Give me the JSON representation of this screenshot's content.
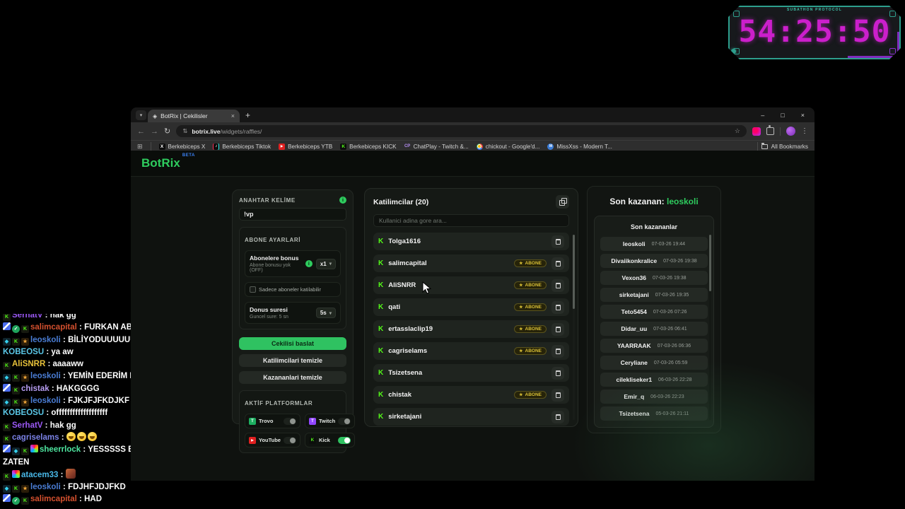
{
  "timer": {
    "label": "SUBATHON PROTOCOL",
    "time": "54:25:50",
    "digit_color": "#cb1fcb",
    "frame_color": "#2d9f8d"
  },
  "browser": {
    "tab_title": "BotRix | Cekilisler",
    "url_host": "botrix.live",
    "url_path": "/widgets/raffles/",
    "bookmarks": [
      {
        "label": "Berkebiceps X",
        "icon": "x-icon",
        "cls": "bm-x"
      },
      {
        "label": "Berkebiceps Tiktok",
        "icon": "tiktok-icon",
        "cls": "bm-tiktok"
      },
      {
        "label": "Berkebiceps YTB",
        "icon": "youtube-icon",
        "cls": "bm-youtube"
      },
      {
        "label": "Berkebiceps KICK",
        "icon": "kick-icon",
        "cls": "bm-kick"
      },
      {
        "label": "ChatPlay - Twitch &...",
        "icon": "chatplay-icon",
        "cls": "bm-chatplay"
      },
      {
        "label": "chickout - Google'd...",
        "icon": "chrome-icon",
        "cls": "bm-chrome"
      },
      {
        "label": "MissXss - Modern T...",
        "icon": "missxss-icon",
        "cls": "bm-missxss"
      }
    ],
    "all_bookmarks_label": "All Bookmarks"
  },
  "app": {
    "logo": "BotRix",
    "beta": "BETA",
    "accent_green": "#2ecc5e",
    "kick_green": "#53fc18",
    "settings": {
      "keyword_label": "ANAHTAR KELİME",
      "keyword_value": "!vp",
      "abone_section_label": "ABONE AYARLARİ",
      "bonus_title": "Abonelere bonus",
      "bonus_subtitle": "Abone bonusu yok (OFF)",
      "bonus_value": "x1",
      "checkbox_label": "Sadece aboneler katilabilir",
      "duration_title": "Donus suresi",
      "duration_subtitle": "Guncel sure: 5 sn",
      "duration_value": "5s",
      "start_button": "Cekilisi baslat",
      "clear_participants_button": "Katilimcilari temizle",
      "clear_winners_button": "Kazananlari temizle",
      "platforms_label": "AKTİF PLATFORMLAR",
      "platforms": [
        {
          "name": "Trovo",
          "on": false,
          "color": "#1daf60"
        },
        {
          "name": "Twitch",
          "on": false,
          "color": "#9146ff"
        },
        {
          "name": "YouTube",
          "on": false,
          "color": "#e02020"
        },
        {
          "name": "Kick",
          "on": true,
          "color": "#0c0f0c"
        }
      ]
    },
    "participants": {
      "title": "Katilimcilar (20)",
      "search_placeholder": "Kullanici adina gore ara...",
      "abone_label": "ABONE",
      "rows": [
        {
          "name": "Tolga1616",
          "abone": false
        },
        {
          "name": "salimcapital",
          "abone": true
        },
        {
          "name": "AliSNRR",
          "abone": true
        },
        {
          "name": "qati",
          "abone": true
        },
        {
          "name": "ertasslaclip19",
          "abone": true
        },
        {
          "name": "cagriselams",
          "abone": true
        },
        {
          "name": "Tsizetsena",
          "abone": false
        },
        {
          "name": "chistak",
          "abone": true
        },
        {
          "name": "sirketajani",
          "abone": false
        }
      ]
    },
    "winners": {
      "last_winner_label": "Son kazanan: ",
      "last_winner": "leoskoli",
      "list_title": "Son kazananlar",
      "rows": [
        {
          "name": "leoskoli",
          "time": "07-03-26 19:44"
        },
        {
          "name": "Divaiikonkralice",
          "time": "07-03-26 19:38"
        },
        {
          "name": "Vexon36",
          "time": "07-03-26 19:38"
        },
        {
          "name": "sirketajani",
          "time": "07-03-26 19:35"
        },
        {
          "name": "Teto5454",
          "time": "07-03-26 07:26"
        },
        {
          "name": "Didar_uu",
          "time": "07-03-26 06:41"
        },
        {
          "name": "YAARRAAK",
          "time": "07-03-26 06:36"
        },
        {
          "name": "Ceryliane",
          "time": "07-03-26 05:59"
        },
        {
          "name": "cilekliseker1",
          "time": "06-03-26 22:28"
        },
        {
          "name": "Emir_q",
          "time": "06-03-26 22:23"
        },
        {
          "name": "Tsizetsena",
          "time": "05-03-26 21:11"
        }
      ]
    }
  },
  "chat": {
    "messages": [
      {
        "user": "SerhatV",
        "color": "#9b59f5",
        "badges": [
          "kick"
        ],
        "text": "hak gg"
      },
      {
        "user": "salimcapital",
        "color": "#d4502e",
        "badges": [
          "mod",
          "verified",
          "kick"
        ],
        "text": "FURKAN ABİ SANA A"
      },
      {
        "user": "leoskoli",
        "color": "#4a7dd4",
        "badges": [
          "gem",
          "kick",
          "sub"
        ],
        "text": "BİLİYODUUUUUUUUUUM"
      },
      {
        "user": "KOBEOSU",
        "color": "#5bc8e8",
        "badges": [],
        "text": "ya aw"
      },
      {
        "user": "AliSNRR",
        "color": "#e8c23a",
        "badges": [
          "kick"
        ],
        "text": "aaaaww"
      },
      {
        "user": "leoskoli",
        "color": "#4a7dd4",
        "badges": [
          "gem",
          "kick",
          "sub"
        ],
        "text": "YEMİN EDERİM BİLİYODU"
      },
      {
        "user": "chistak",
        "color": "#b79df2",
        "badges": [
          "mod",
          "kick"
        ],
        "text": "HAKGGGG"
      },
      {
        "user": "leoskoli",
        "color": "#4a7dd4",
        "badges": [
          "gem",
          "kick",
          "sub"
        ],
        "text": "FJKJFJFKDJKF"
      },
      {
        "user": "KOBEOSU",
        "color": "#5bc8e8",
        "badges": [],
        "text": "offfffffffffffffffff"
      },
      {
        "user": "SerhatV",
        "color": "#9b59f5",
        "badges": [
          "kick"
        ],
        "text": "hak gg"
      },
      {
        "user": "cagriselams",
        "color": "#7c83e8",
        "badges": [
          "kick"
        ],
        "text": "",
        "emotes": [
          "laughing-face",
          "laughing-face",
          "laughing-face"
        ]
      },
      {
        "user": "sheerrlock",
        "color": "#4ee6a0",
        "badges": [
          "mod",
          "gem",
          "kick",
          "founder"
        ],
        "text": "YESSSSS BEEEE BA\nZATEN"
      },
      {
        "user": "atacem33",
        "color": "#49b8e8",
        "badges": [
          "kick",
          "founder"
        ],
        "text": "",
        "emotes": [
          "pixel-emote"
        ]
      },
      {
        "user": "leoskoli",
        "color": "#4a7dd4",
        "badges": [
          "gem",
          "kick",
          "sub"
        ],
        "text": "FDJHFJDJFKD"
      },
      {
        "user": "salimcapital",
        "color": "#d4502e",
        "badges": [
          "mod",
          "verified",
          "kick"
        ],
        "text": "HAD"
      }
    ]
  }
}
